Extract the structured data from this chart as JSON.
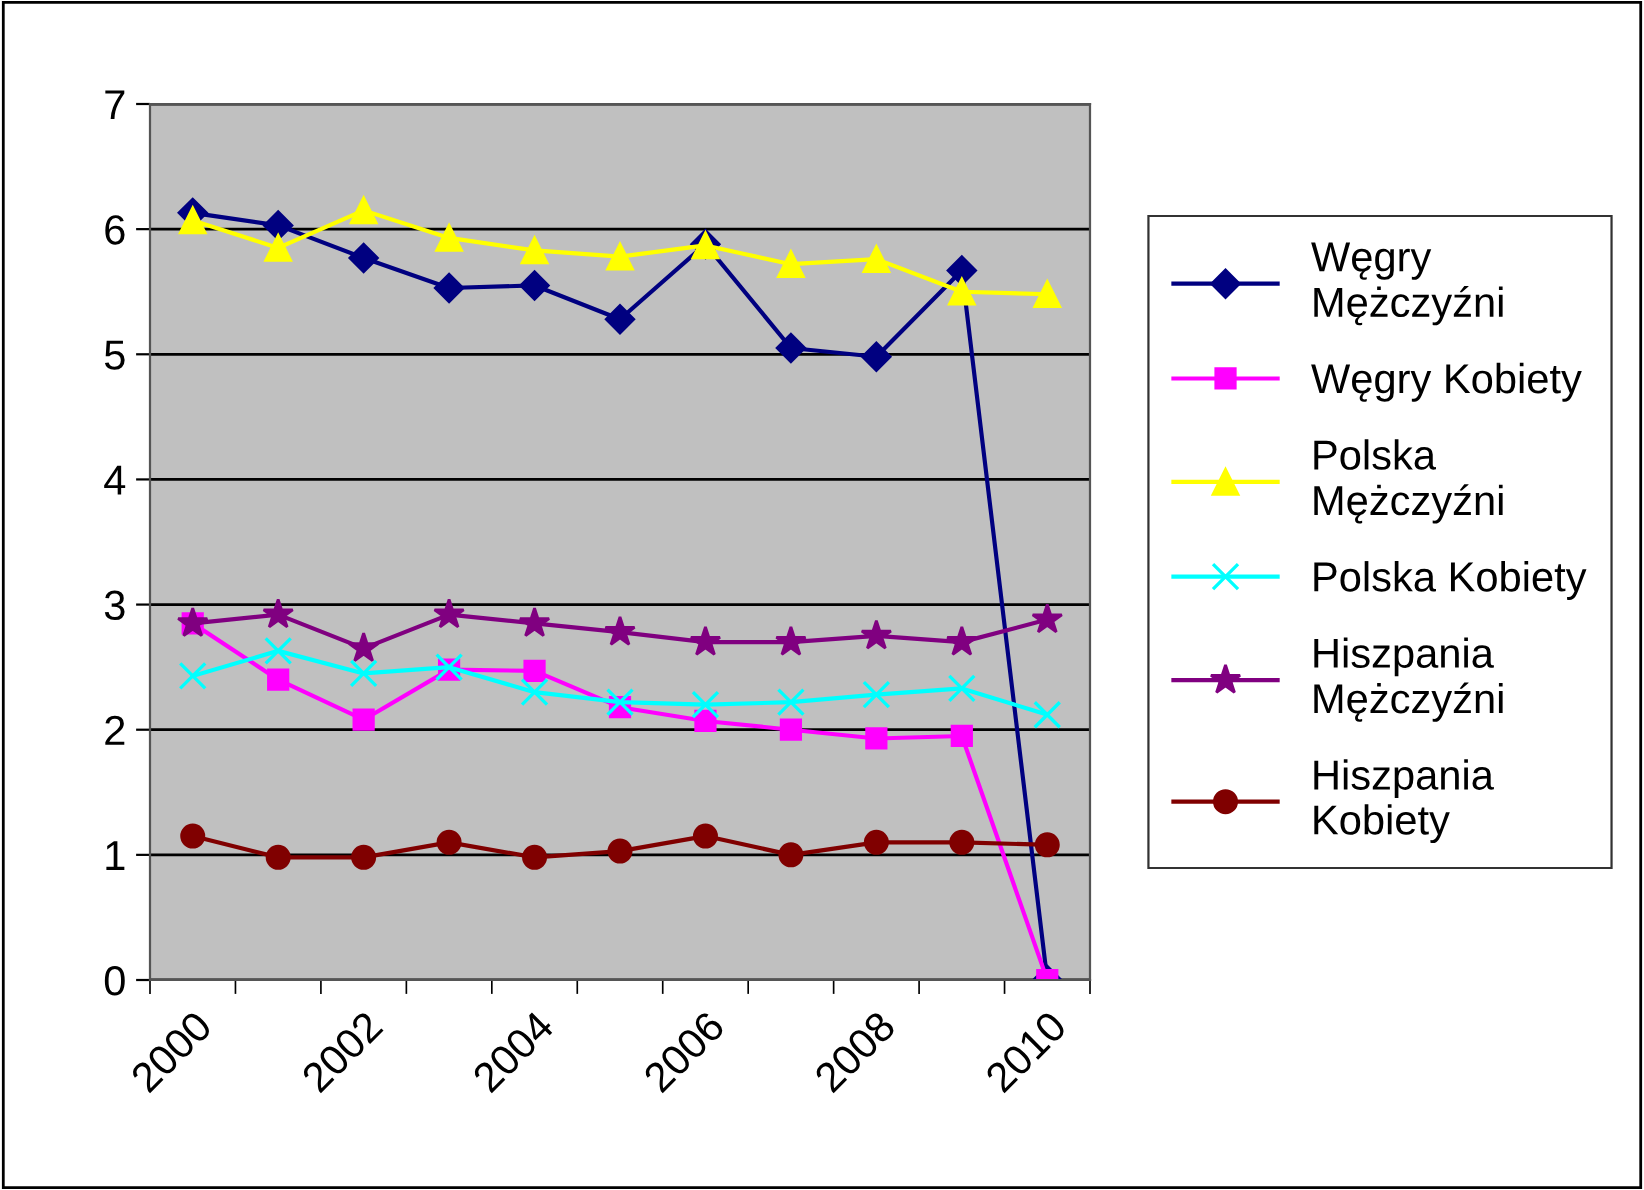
{
  "chart_data": {
    "type": "line",
    "categories": [
      "2000",
      null,
      "2002",
      null,
      "2004",
      null,
      "2006",
      null,
      "2008",
      null,
      "2010"
    ],
    "series": [
      {
        "name": "Węgry Mężczyźni",
        "color": "#000080",
        "marker": "diamond",
        "values": [
          6.13,
          6.03,
          5.77,
          5.53,
          5.55,
          5.28,
          5.88,
          5.05,
          4.98,
          5.67,
          0
        ]
      },
      {
        "name": "Węgry Kobiety",
        "color": "#ff00ff",
        "marker": "square",
        "values": [
          2.85,
          2.4,
          2.08,
          2.48,
          2.47,
          2.18,
          2.07,
          2.0,
          1.93,
          1.95,
          0
        ]
      },
      {
        "name": "Polska Mężczyźni",
        "color": "#ffff00",
        "marker": "triangle",
        "values": [
          6.07,
          5.85,
          6.15,
          5.93,
          5.83,
          5.78,
          5.87,
          5.72,
          5.76,
          5.5,
          5.48
        ]
      },
      {
        "name": "Polska Kobiety",
        "color": "#00ffff",
        "marker": "cross",
        "values": [
          2.43,
          2.63,
          2.45,
          2.5,
          2.3,
          2.22,
          2.2,
          2.22,
          2.28,
          2.33,
          2.12
        ]
      },
      {
        "name": "Hiszpania Mężczyźni",
        "color": "#800080",
        "marker": "star",
        "values": [
          2.85,
          2.92,
          2.65,
          2.92,
          2.85,
          2.78,
          2.7,
          2.7,
          2.75,
          2.7,
          2.88
        ]
      },
      {
        "name": "Hiszpania Kobiety",
        "color": "#800000",
        "marker": "circle",
        "values": [
          1.15,
          0.98,
          0.98,
          1.1,
          0.98,
          1.03,
          1.15,
          1.0,
          1.1,
          1.1,
          1.08
        ]
      }
    ],
    "ylim": [
      0,
      7
    ],
    "yticks": [
      0,
      1,
      2,
      3,
      4,
      5,
      6,
      7
    ],
    "grid": "y",
    "legend": "right",
    "line_style": "solid"
  }
}
